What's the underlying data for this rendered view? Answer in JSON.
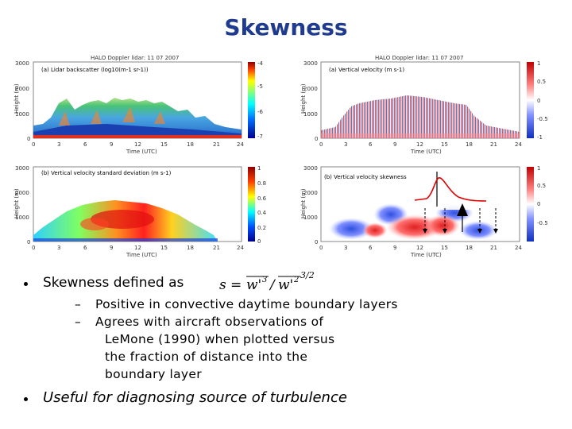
{
  "slide": {
    "title": "Skewness"
  },
  "panels": {
    "a_backscatter": {
      "header": "HALO Doppler lidar: 11 07 2007",
      "label": "(a) Lidar backscatter (log10(m-1 sr-1))",
      "ylabel": "Height (m)",
      "xlabel": "Time (UTC)",
      "yticks": [
        "3000",
        "2000",
        "1000",
        "0"
      ],
      "xticks": [
        "0",
        "3",
        "6",
        "9",
        "12",
        "15",
        "18",
        "21",
        "24"
      ],
      "cbar_ticks": [
        "-4",
        "-5",
        "-6",
        "-7"
      ]
    },
    "a_velocity": {
      "header": "HALO Doppler lidar: 11 07 2007",
      "label": "(a) Vertical velocity (m s-1)",
      "ylabel": "Height (m)",
      "xlabel": "Time (UTC)",
      "yticks": [
        "3000",
        "2000",
        "1000",
        "0"
      ],
      "xticks": [
        "0",
        "3",
        "6",
        "9",
        "12",
        "15",
        "18",
        "21",
        "24"
      ],
      "cbar_ticks": [
        "1",
        "0.5",
        "0",
        "-0.5",
        "-1"
      ]
    },
    "b_stddev": {
      "label": "(b) Vertical velocity standard deviation (m s-1)",
      "ylabel": "Height (m)",
      "xlabel": "Time (UTC)",
      "yticks": [
        "3000",
        "2000",
        "1000",
        "0"
      ],
      "xticks": [
        "0",
        "3",
        "6",
        "9",
        "12",
        "15",
        "18",
        "21",
        "24"
      ],
      "cbar_ticks": [
        "1",
        "0.8",
        "0.6",
        "0.4",
        "0.2",
        "0"
      ]
    },
    "b_skewness": {
      "label": "(b) Vertical velocity skewness",
      "ylabel": "Height (m)",
      "xlabel": "Time (UTC)",
      "yticks": [
        "3000",
        "2000",
        "1000",
        "0"
      ],
      "xticks": [
        "0",
        "3",
        "6",
        "9",
        "12",
        "15",
        "18",
        "21",
        "24"
      ],
      "cbar_ticks": [
        "1",
        "0.5",
        "0",
        "-0.5"
      ]
    }
  },
  "bullets": {
    "b1_text": "Skewness defined as",
    "formula": "s = w'³ / w'²^(3/2)",
    "sub1": "Positive in convective daytime boundary layers",
    "sub2_line1": "Agrees with aircraft observations of",
    "sub2_line2": "LeMone (1990) when plotted versus",
    "sub2_line3": "the fraction of distance into the",
    "sub2_line4": "boundary layer",
    "dash": "–",
    "b2_text": "Useful for diagnosing source of turbulence"
  },
  "colors": {
    "title": "#1f3b8f"
  }
}
